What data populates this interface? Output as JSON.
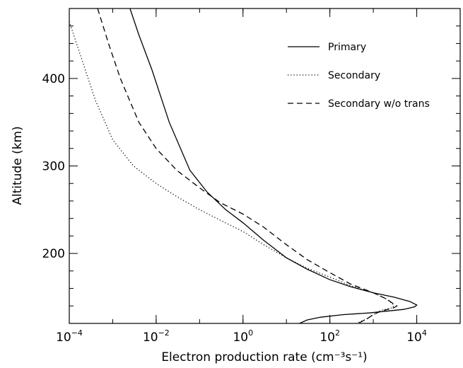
{
  "chart_data": {
    "type": "line",
    "xlabel": "Electron production rate (cm⁻³s⁻¹)",
    "ylabel": "Altitude (km)",
    "xscale": "log",
    "xlim": [
      0.0001,
      100000
    ],
    "ylim": [
      120,
      480
    ],
    "x_ticks": [
      {
        "value": 0.0001,
        "base": "10",
        "exp": "−4"
      },
      {
        "value": 0.01,
        "base": "10",
        "exp": "−2"
      },
      {
        "value": 1,
        "base": "10",
        "exp": "0"
      },
      {
        "value": 100,
        "base": "10",
        "exp": "2"
      },
      {
        "value": 10000,
        "base": "10",
        "exp": "4"
      }
    ],
    "y_ticks": [
      {
        "value": 200,
        "label": "200"
      },
      {
        "value": 300,
        "label": "300"
      },
      {
        "value": 400,
        "label": "400"
      }
    ],
    "grid": false,
    "legend_position": "top-right",
    "series": [
      {
        "name": "Primary",
        "dash": "solid",
        "color": "#000000",
        "points": [
          [
            0.0025,
            480
          ],
          [
            0.004,
            450
          ],
          [
            0.008,
            410
          ],
          [
            0.02,
            350
          ],
          [
            0.06,
            295
          ],
          [
            0.15,
            270
          ],
          [
            0.4,
            250
          ],
          [
            1,
            235
          ],
          [
            3,
            215
          ],
          [
            10,
            195
          ],
          [
            30,
            182
          ],
          [
            100,
            170
          ],
          [
            300,
            162
          ],
          [
            1000,
            155
          ],
          [
            3000,
            150
          ],
          [
            7000,
            145
          ],
          [
            10000,
            141
          ],
          [
            9000,
            139
          ],
          [
            5000,
            136
          ],
          [
            2000,
            134
          ],
          [
            800,
            132
          ],
          [
            200,
            130
          ],
          [
            60,
            127
          ],
          [
            30,
            124
          ],
          [
            20,
            120
          ]
        ]
      },
      {
        "name": "Secondary",
        "dash": "dotted",
        "color": "#000000",
        "points": [
          [
            0.0001,
            465
          ],
          [
            0.0002,
            420
          ],
          [
            0.0004,
            375
          ],
          [
            0.001,
            330
          ],
          [
            0.003,
            300
          ],
          [
            0.01,
            280
          ],
          [
            0.03,
            265
          ],
          [
            0.1,
            250
          ],
          [
            0.3,
            238
          ],
          [
            1,
            225
          ],
          [
            3,
            210
          ],
          [
            10,
            195
          ],
          [
            30,
            183
          ],
          [
            100,
            173
          ],
          [
            300,
            163
          ],
          [
            1000,
            155
          ],
          [
            2000,
            148
          ],
          [
            3000,
            141
          ],
          [
            2800,
            138
          ],
          [
            1500,
            135
          ],
          [
            1000,
            130
          ],
          [
            700,
            125
          ],
          [
            400,
            120
          ]
        ]
      },
      {
        "name": "Secondary w/o trans",
        "dash": "dashed",
        "color": "#000000",
        "points": [
          [
            0.00045,
            480
          ],
          [
            0.0008,
            440
          ],
          [
            0.0015,
            400
          ],
          [
            0.004,
            350
          ],
          [
            0.01,
            320
          ],
          [
            0.03,
            295
          ],
          [
            0.1,
            275
          ],
          [
            0.3,
            258
          ],
          [
            1,
            245
          ],
          [
            3,
            230
          ],
          [
            10,
            210
          ],
          [
            30,
            193
          ],
          [
            100,
            178
          ],
          [
            300,
            165
          ],
          [
            1000,
            155
          ],
          [
            2000,
            148
          ],
          [
            3000,
            142
          ],
          [
            3500,
            140
          ],
          [
            3000,
            138
          ],
          [
            1500,
            134
          ],
          [
            1000,
            130
          ],
          [
            700,
            125
          ],
          [
            450,
            120
          ]
        ]
      }
    ]
  }
}
